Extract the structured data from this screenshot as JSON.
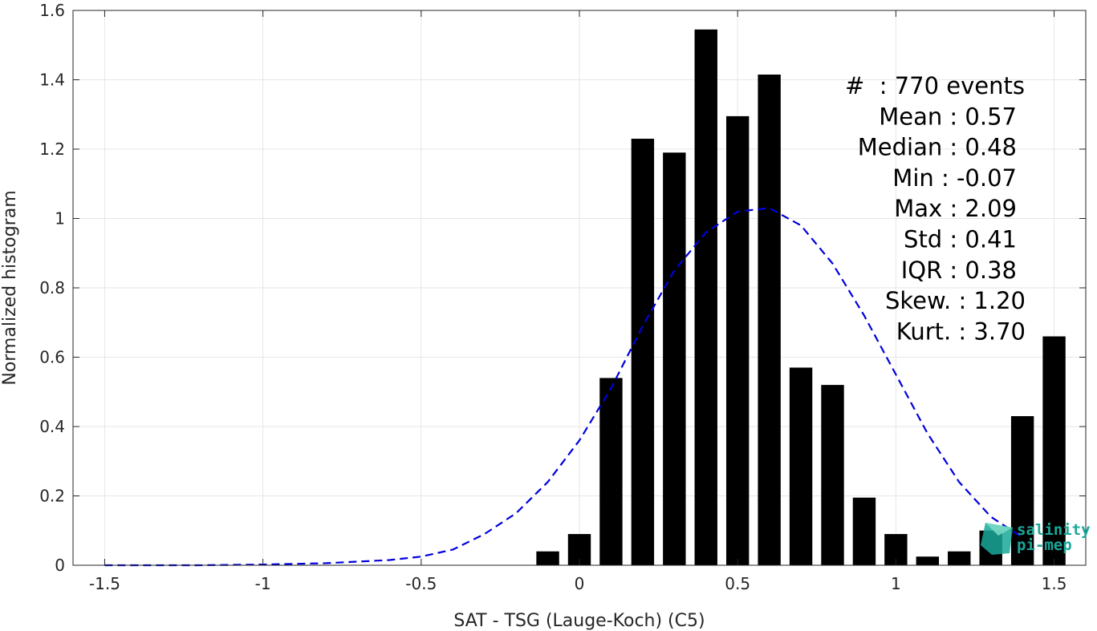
{
  "chart_data": {
    "type": "bar",
    "xlabel": "SAT - TSG (Lauge-Koch) (C5)",
    "ylabel": "Normalized histogram",
    "xlim": [
      -1.6,
      1.6
    ],
    "ylim": [
      0,
      1.6
    ],
    "grid": true,
    "x_ticks": [
      -1.5,
      -1,
      -0.5,
      0,
      0.5,
      1,
      1.5
    ],
    "x_tick_labels": [
      "-1.5",
      "-1",
      "-0.5",
      "0",
      "0.5",
      "1",
      "1.5"
    ],
    "y_ticks": [
      0,
      0.2,
      0.4,
      0.6,
      0.8,
      1,
      1.2,
      1.4,
      1.6
    ],
    "y_tick_labels": [
      "0",
      "0.2",
      "0.4",
      "0.6",
      "0.8",
      "1",
      "1.2",
      "1.4",
      "1.6"
    ],
    "bar_color": "#000000",
    "bars": {
      "x": [
        -0.1,
        0.0,
        0.1,
        0.2,
        0.3,
        0.4,
        0.5,
        0.6,
        0.7,
        0.8,
        0.9,
        1.0,
        1.1,
        1.2,
        1.3,
        1.4,
        1.5
      ],
      "values": [
        0.04,
        0.09,
        0.54,
        1.23,
        1.19,
        1.545,
        1.295,
        1.415,
        0.57,
        0.52,
        0.195,
        0.09,
        0.025,
        0.04,
        0.1,
        0.43,
        0.66
      ]
    },
    "fit_curve": {
      "style": "dashed",
      "color": "#0000dd",
      "x": [
        -1.5,
        -1.2,
        -1.0,
        -0.8,
        -0.6,
        -0.5,
        -0.4,
        -0.3,
        -0.2,
        -0.1,
        0.0,
        0.1,
        0.2,
        0.3,
        0.4,
        0.5,
        0.6,
        0.7,
        0.8,
        0.9,
        1.0,
        1.1,
        1.2,
        1.3,
        1.4
      ],
      "y": [
        0.0,
        0.0,
        0.002,
        0.006,
        0.015,
        0.025,
        0.045,
        0.09,
        0.15,
        0.24,
        0.36,
        0.51,
        0.69,
        0.85,
        0.96,
        1.02,
        1.03,
        0.98,
        0.87,
        0.72,
        0.55,
        0.38,
        0.24,
        0.14,
        0.08
      ]
    },
    "stats_lines": [
      "#  : 770 events",
      "Mean : 0.57",
      "Median : 0.48",
      "Min : -0.07",
      "Max : 2.09",
      "Std : 0.41",
      "IQR : 0.38",
      "Skew. : 1.20",
      "Kurt. : 3.70"
    ]
  },
  "logo": {
    "line1": "salinity",
    "line2": "pi-mep",
    "color": "#1aa89a"
  }
}
